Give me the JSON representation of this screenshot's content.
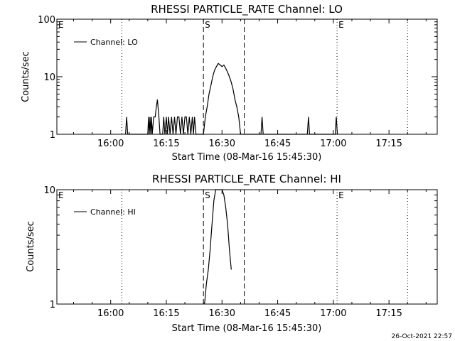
{
  "footer_timestamp": "26-Oct-2021 22:57",
  "chart_data": [
    {
      "type": "line",
      "title": "RHESSI PARTICLE_RATE Channel: LO",
      "xlabel": "Start Time (08-Mar-16 15:45:30)",
      "ylabel": "Counts/sec",
      "yscale": "log",
      "ylim": [
        1,
        100
      ],
      "y_ticks": [
        1,
        10,
        100
      ],
      "y_tick_labels": [
        "1",
        "10",
        "100"
      ],
      "xlim": [
        "15:45:30",
        "17:28:00"
      ],
      "x_ticks": [
        "16:00",
        "16:15",
        "16:30",
        "16:45",
        "17:00",
        "17:15"
      ],
      "legend": {
        "label": "Channel: LO",
        "position": "top-left"
      },
      "markers": [
        {
          "label": "E",
          "time": "15:45:30",
          "style": "dotted"
        },
        {
          "time": "16:03",
          "style": "dotted"
        },
        {
          "label": "S",
          "time": "16:25",
          "style": "dashed"
        },
        {
          "time": "16:36",
          "style": "dashed"
        },
        {
          "label": "E",
          "time": "17:01",
          "style": "dotted"
        },
        {
          "time": "17:20",
          "style": "dotted"
        }
      ],
      "series": [
        {
          "name": "Channel: LO",
          "points": [
            [
              "16:04",
              1
            ],
            [
              "16:04.3",
              2
            ],
            [
              "16:04.6",
              1
            ],
            [
              "16:10",
              1
            ],
            [
              "16:10.2",
              2
            ],
            [
              "16:10.4",
              1
            ],
            [
              "16:10.6",
              2
            ],
            [
              "16:10.8",
              1
            ],
            [
              "16:11",
              2
            ],
            [
              "16:11.2",
              1
            ],
            [
              "16:11.6",
              2
            ],
            [
              "16:12",
              2
            ],
            [
              "16:12.3",
              3
            ],
            [
              "16:12.6",
              4
            ],
            [
              "16:13",
              2
            ],
            [
              "16:13.3",
              1
            ],
            [
              "16:14",
              1
            ],
            [
              "16:14.3",
              2
            ],
            [
              "16:14.6",
              1
            ],
            [
              "16:15",
              2
            ],
            [
              "16:15.3",
              1
            ],
            [
              "16:15.6",
              2
            ],
            [
              "16:16",
              1
            ],
            [
              "16:16.4",
              2
            ],
            [
              "16:16.8",
              1
            ],
            [
              "16:17.2",
              2
            ],
            [
              "16:17.6",
              1
            ],
            [
              "16:18",
              2
            ],
            [
              "16:18.4",
              2
            ],
            [
              "16:18.8",
              1
            ],
            [
              "16:19.2",
              2
            ],
            [
              "16:19.6",
              1
            ],
            [
              "16:20",
              2
            ],
            [
              "16:20.4",
              2
            ],
            [
              "16:20.8",
              1
            ],
            [
              "16:21.2",
              2
            ],
            [
              "16:21.6",
              1
            ],
            [
              "16:22",
              2
            ],
            [
              "16:22.3",
              1
            ],
            [
              "16:22.6",
              2
            ],
            [
              "16:23",
              1
            ],
            [
              "16:24.8",
              1
            ],
            [
              "16:25",
              1
            ],
            [
              "16:25.5",
              2
            ],
            [
              "16:26",
              3
            ],
            [
              "16:26.5",
              5
            ],
            [
              "16:27",
              7
            ],
            [
              "16:27.5",
              10
            ],
            [
              "16:28",
              13
            ],
            [
              "16:28.5",
              15
            ],
            [
              "16:29",
              17
            ],
            [
              "16:29.5",
              16
            ],
            [
              "16:30",
              15
            ],
            [
              "16:30.5",
              16
            ],
            [
              "16:31",
              14
            ],
            [
              "16:31.5",
              12
            ],
            [
              "16:32",
              10
            ],
            [
              "16:32.5",
              8
            ],
            [
              "16:33",
              6
            ],
            [
              "16:33.5",
              4
            ],
            [
              "16:34",
              3
            ],
            [
              "16:34.5",
              2
            ],
            [
              "16:35",
              1
            ],
            [
              "16:40.5",
              1
            ],
            [
              "16:40.8",
              2
            ],
            [
              "16:41.1",
              1
            ],
            [
              "16:53",
              1
            ],
            [
              "16:53.3",
              2
            ],
            [
              "16:53.6",
              1
            ],
            [
              "17:00.5",
              1
            ],
            [
              "17:00.8",
              2
            ],
            [
              "17:01.1",
              1
            ]
          ]
        }
      ]
    },
    {
      "type": "line",
      "title": "RHESSI PARTICLE_RATE Channel: HI",
      "xlabel": "Start Time (08-Mar-16 15:45:30)",
      "ylabel": "Counts/sec",
      "yscale": "log",
      "ylim": [
        1,
        10
      ],
      "y_ticks": [
        1,
        10
      ],
      "y_tick_labels": [
        "1",
        "10"
      ],
      "xlim": [
        "15:45:30",
        "17:28:00"
      ],
      "x_ticks": [
        "16:00",
        "16:15",
        "16:30",
        "16:45",
        "17:00",
        "17:15"
      ],
      "legend": {
        "label": "Channel: HI",
        "position": "top-left"
      },
      "markers": [
        {
          "label": "E",
          "time": "15:45:30",
          "style": "dotted"
        },
        {
          "time": "16:03",
          "style": "dotted"
        },
        {
          "label": "S",
          "time": "16:25",
          "style": "dashed"
        },
        {
          "time": "16:36",
          "style": "dashed"
        },
        {
          "label": "E",
          "time": "17:01",
          "style": "dotted"
        },
        {
          "time": "17:20",
          "style": "dotted"
        }
      ],
      "series": [
        {
          "name": "Channel: HI",
          "points": [
            [
              "16:25.3",
              1
            ],
            [
              "16:25.8",
              1.5
            ],
            [
              "16:26.3",
              2
            ],
            [
              "16:26.8",
              3
            ],
            [
              "16:27.3",
              5
            ],
            [
              "16:27.8",
              8
            ],
            [
              "16:28.3",
              10
            ],
            [
              "16:29",
              10
            ],
            [
              "16:30",
              10
            ],
            [
              "16:30.5",
              9
            ],
            [
              "16:31",
              7
            ],
            [
              "16:31.5",
              5
            ],
            [
              "16:32",
              3
            ],
            [
              "16:32.5",
              2
            ]
          ]
        }
      ]
    }
  ]
}
